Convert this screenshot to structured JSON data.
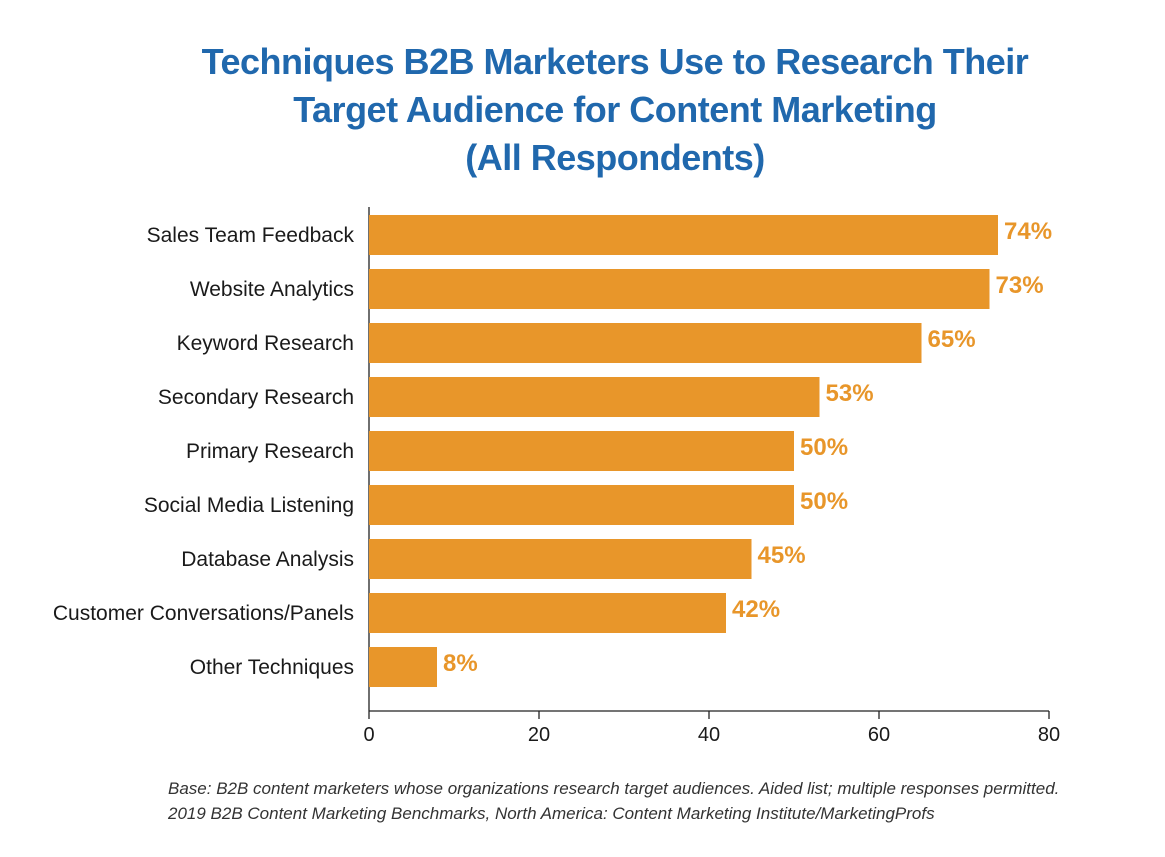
{
  "chart_data": {
    "type": "bar",
    "orientation": "horizontal",
    "title": [
      "Techniques B2B Marketers Use to Research Their",
      "Target Audience for Content Marketing",
      "(All Respondents)"
    ],
    "categories": [
      "Sales Team Feedback",
      "Website Analytics",
      "Keyword Research",
      "Secondary Research",
      "Primary Research",
      "Social Media Listening",
      "Database Analysis",
      "Customer Conversations/Panels",
      "Other Techniques"
    ],
    "values": [
      74,
      73,
      65,
      53,
      50,
      50,
      45,
      42,
      8
    ],
    "value_labels": [
      "74%",
      "73%",
      "65%",
      "53%",
      "50%",
      "50%",
      "45%",
      "42%",
      "8%"
    ],
    "x_ticks": [
      "0",
      "20",
      "40",
      "60",
      "80"
    ],
    "xlim": [
      0,
      80
    ],
    "grid": false,
    "xlabel": "",
    "ylabel": "",
    "bar_color": "#e8962a",
    "title_color": "#2068ad",
    "value_label_color": "#e8962a"
  },
  "footnote": [
    "Base: B2B content marketers whose organizations research target audiences. Aided list; multiple responses permitted.",
    "2019 B2B Content Marketing Benchmarks, North America: Content Marketing Institute/MarketingProfs"
  ]
}
